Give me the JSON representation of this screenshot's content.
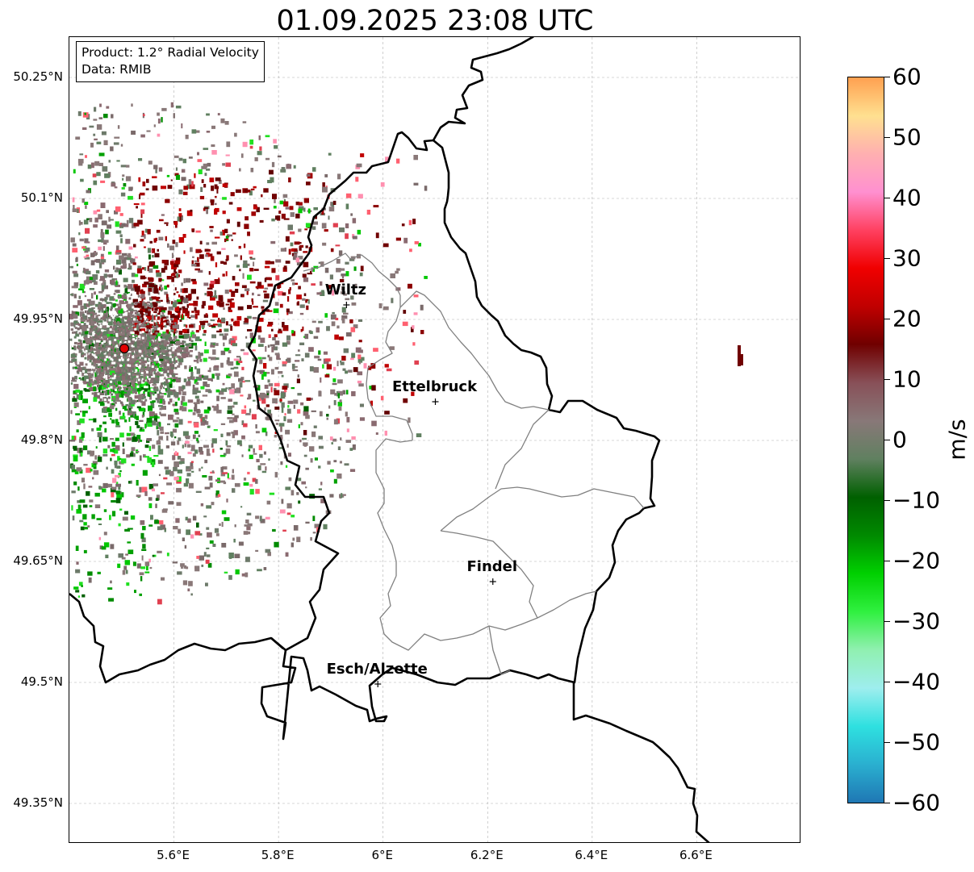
{
  "title": "01.09.2025 23:08 UTC",
  "info": {
    "product": "Product: 1.2° Radial Velocity",
    "data": "Data: RMIB"
  },
  "latitude_labels": [
    "50.25°N",
    "50.1°N",
    "49.95°N",
    "49.8°N",
    "49.65°N",
    "49.5°N",
    "49.35°N"
  ],
  "latitude_values": [
    50.25,
    50.1,
    49.95,
    49.8,
    49.65,
    49.5,
    49.35
  ],
  "longitude_labels": [
    "5.6°E",
    "5.8°E",
    "6°E",
    "6.2°E",
    "6.4°E",
    "6.6°E"
  ],
  "longitude_values": [
    5.6,
    5.8,
    6.0,
    6.2,
    6.4,
    6.6
  ],
  "map_extent": {
    "lon_min": 5.4,
    "lon_max": 6.8,
    "lat_min": 49.3,
    "lat_max": 50.3
  },
  "cities": [
    {
      "name": "Wiltz",
      "lon": 5.93,
      "lat": 49.968
    },
    {
      "name": "Ettelbruck",
      "lon": 6.1,
      "lat": 49.848
    },
    {
      "name": "Findel",
      "lon": 6.21,
      "lat": 49.625
    },
    {
      "name": "Esch/Alzette",
      "lon": 5.99,
      "lat": 49.498
    }
  ],
  "radar_site": {
    "lon": 5.505,
    "lat": 49.914
  },
  "colorbar": {
    "unit": "m/s",
    "ticks": [
      "60",
      "50",
      "40",
      "30",
      "20",
      "10",
      "0",
      "−10",
      "−20",
      "−30",
      "−40",
      "−50",
      "−60"
    ],
    "tick_values": [
      60,
      50,
      40,
      30,
      20,
      10,
      0,
      -10,
      -20,
      -30,
      -40,
      -50,
      -60
    ],
    "min": -60,
    "max": 60,
    "stops": [
      "#1f77b4",
      "#2ab0d0",
      "#2ee0e0",
      "#9eeeee",
      "#90f0b0",
      "#30f040",
      "#00d000",
      "#008a00",
      "#006000",
      "#608060",
      "#887878",
      "#885058",
      "#700000",
      "#c00000",
      "#f00000",
      "#ff4060",
      "#ff90d0",
      "#ffb0b0",
      "#ffe090",
      "#ffa050"
    ]
  },
  "colors": {
    "border": "#000000",
    "district": "#808080",
    "grid": "#b0b0b0",
    "radar_site": "#e00000"
  }
}
